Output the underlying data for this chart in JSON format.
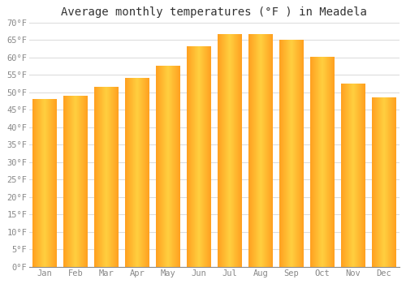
{
  "title": "Average monthly temperatures (°F ) in Meadela",
  "months": [
    "Jan",
    "Feb",
    "Mar",
    "Apr",
    "May",
    "Jun",
    "Jul",
    "Aug",
    "Sep",
    "Oct",
    "Nov",
    "Dec"
  ],
  "values": [
    48.0,
    49.0,
    51.5,
    54.0,
    57.5,
    63.0,
    66.5,
    66.5,
    65.0,
    60.0,
    52.5,
    48.5
  ],
  "bar_color_center": "#FFD040",
  "bar_color_edge": "#FFA020",
  "background_color": "#FFFFFF",
  "plot_bg_color": "#FFFFFF",
  "grid_color": "#DDDDDD",
  "ylim": [
    0,
    70
  ],
  "yticks": [
    0,
    5,
    10,
    15,
    20,
    25,
    30,
    35,
    40,
    45,
    50,
    55,
    60,
    65,
    70
  ],
  "ytick_labels": [
    "0°F",
    "5°F",
    "10°F",
    "15°F",
    "20°F",
    "25°F",
    "30°F",
    "35°F",
    "40°F",
    "45°F",
    "50°F",
    "55°F",
    "60°F",
    "65°F",
    "70°F"
  ],
  "title_fontsize": 10,
  "tick_fontsize": 7.5,
  "font_family": "monospace",
  "bar_width": 0.78,
  "n_gradient_steps": 100
}
